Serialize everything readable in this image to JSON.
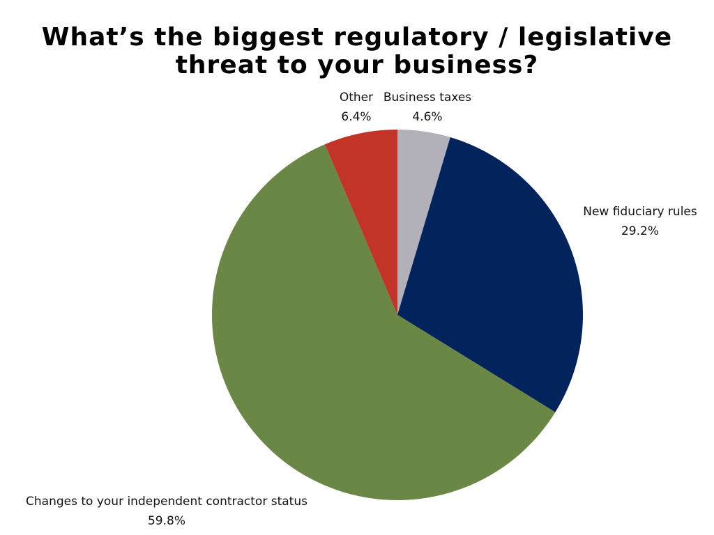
{
  "title": {
    "line1": "What’s the biggest regulatory / legislative",
    "line2": "threat to your business?"
  },
  "chart_data": {
    "type": "pie",
    "title": "What’s the biggest regulatory / legislative threat to your business?",
    "start_angle": "12 o'clock, clockwise",
    "center": [
      570,
      452
    ],
    "radius": 266,
    "slices": [
      {
        "label": "Business taxes",
        "value": 4.6,
        "display": "4.6%",
        "color": "#b2b1b9"
      },
      {
        "label": "New fiduciary rules",
        "value": 29.2,
        "display": "29.2%",
        "color": "#03235c"
      },
      {
        "label": "Changes to your independent contractor status",
        "value": 59.8,
        "display": "59.8%",
        "color": "#6b8745"
      },
      {
        "label": "Other",
        "value": 6.4,
        "display": "6.4%",
        "color": "#c23427"
      }
    ],
    "legend": "none (data labels outside slices)"
  }
}
